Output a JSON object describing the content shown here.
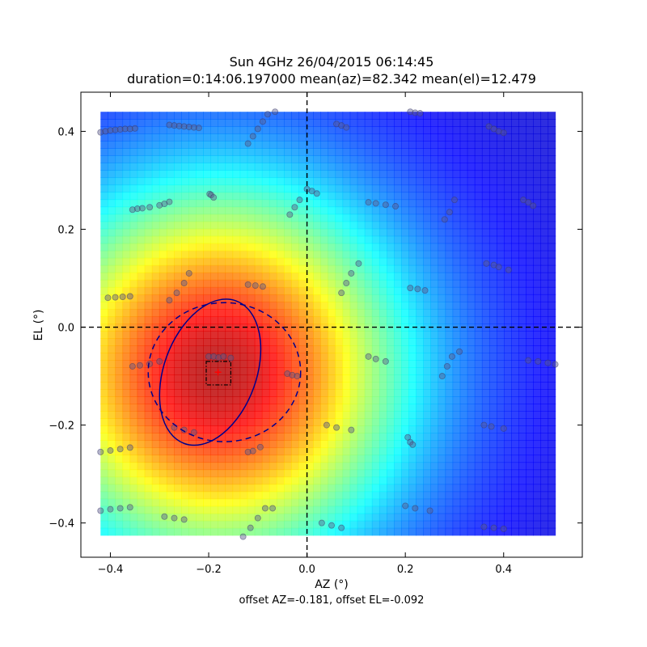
{
  "chart_data": {
    "type": "heatmap",
    "title": "Sun 4GHz 26/04/2015 06:14:45",
    "subtitle": "duration=0:14:06.197000 mean(az)=82.342 mean(el)=12.479",
    "xlabel": "AZ (°)",
    "ylabel": "EL (°)",
    "footer": "offset AZ=-0.181, offset EL=-0.092",
    "xlim": [
      -0.46,
      0.56
    ],
    "ylim": [
      -0.47,
      0.48
    ],
    "heatmap_extent": {
      "x": [
        -0.42,
        0.505
      ],
      "y": [
        -0.425,
        0.44
      ]
    },
    "colormap": "jet",
    "xticks": [
      {
        "value": -0.4,
        "label": "−0.4"
      },
      {
        "value": -0.2,
        "label": "−0.2"
      },
      {
        "value": 0.0,
        "label": "0.0"
      },
      {
        "value": 0.2,
        "label": "0.2"
      },
      {
        "value": 0.4,
        "label": "0.4"
      }
    ],
    "yticks": [
      {
        "value": -0.4,
        "label": "−0.4"
      },
      {
        "value": -0.2,
        "label": "−0.2"
      },
      {
        "value": 0.0,
        "label": "0.0"
      },
      {
        "value": 0.2,
        "label": "0.2"
      },
      {
        "value": 0.4,
        "label": "0.4"
      }
    ],
    "beam_center": {
      "az": -0.181,
      "el": -0.092
    },
    "half_power_ellipse": {
      "center": [
        -0.197,
        -0.092
      ],
      "semi_axes": [
        0.094,
        0.155
      ],
      "rotation_deg": 20
    },
    "beam_ellipse": {
      "center": [
        -0.168,
        -0.092
      ],
      "semi_axes": [
        0.155,
        0.142
      ],
      "rotation_deg": 0
    },
    "center_box": {
      "x": [
        -0.205,
        -0.155
      ],
      "y": [
        -0.118,
        -0.07
      ]
    },
    "crosshair": {
      "x": 0.0,
      "y": 0.0
    },
    "colors": {
      "circle_fill": "#5a5a8c",
      "circle_stroke": "#3a3a6a",
      "contour": "#00008b",
      "marker": "#ff0000"
    },
    "scan_points": [
      {
        "az": -0.42,
        "el": 0.398
      },
      {
        "az": -0.41,
        "el": 0.4
      },
      {
        "az": -0.4,
        "el": 0.402
      },
      {
        "az": -0.39,
        "el": 0.403
      },
      {
        "az": -0.38,
        "el": 0.404
      },
      {
        "az": -0.37,
        "el": 0.405
      },
      {
        "az": -0.36,
        "el": 0.405
      },
      {
        "az": -0.35,
        "el": 0.406
      },
      {
        "az": -0.28,
        "el": 0.413
      },
      {
        "az": -0.27,
        "el": 0.412
      },
      {
        "az": -0.26,
        "el": 0.411
      },
      {
        "az": -0.25,
        "el": 0.41
      },
      {
        "az": -0.24,
        "el": 0.409
      },
      {
        "az": -0.23,
        "el": 0.408
      },
      {
        "az": -0.22,
        "el": 0.407
      },
      {
        "az": -0.12,
        "el": 0.375
      },
      {
        "az": -0.11,
        "el": 0.39
      },
      {
        "az": -0.1,
        "el": 0.405
      },
      {
        "az": -0.09,
        "el": 0.42
      },
      {
        "az": -0.08,
        "el": 0.435
      },
      {
        "az": -0.065,
        "el": 0.44
      },
      {
        "az": 0.06,
        "el": 0.415
      },
      {
        "az": 0.07,
        "el": 0.412
      },
      {
        "az": 0.08,
        "el": 0.408
      },
      {
        "az": 0.21,
        "el": 0.44
      },
      {
        "az": 0.22,
        "el": 0.438
      },
      {
        "az": 0.23,
        "el": 0.437
      },
      {
        "az": 0.37,
        "el": 0.41
      },
      {
        "az": 0.38,
        "el": 0.405
      },
      {
        "az": 0.39,
        "el": 0.4
      },
      {
        "az": 0.4,
        "el": 0.397
      },
      {
        "az": -0.355,
        "el": 0.24
      },
      {
        "az": -0.345,
        "el": 0.242
      },
      {
        "az": -0.335,
        "el": 0.243
      },
      {
        "az": -0.32,
        "el": 0.245
      },
      {
        "az": -0.3,
        "el": 0.249
      },
      {
        "az": -0.29,
        "el": 0.252
      },
      {
        "az": -0.28,
        "el": 0.256
      },
      {
        "az": -0.198,
        "el": 0.272
      },
      {
        "az": -0.195,
        "el": 0.27
      },
      {
        "az": -0.19,
        "el": 0.265
      },
      {
        "az": -0.035,
        "el": 0.23
      },
      {
        "az": -0.025,
        "el": 0.245
      },
      {
        "az": -0.015,
        "el": 0.26
      },
      {
        "az": 0.0,
        "el": 0.282
      },
      {
        "az": 0.01,
        "el": 0.278
      },
      {
        "az": 0.02,
        "el": 0.273
      },
      {
        "az": 0.125,
        "el": 0.255
      },
      {
        "az": 0.14,
        "el": 0.253
      },
      {
        "az": 0.16,
        "el": 0.25
      },
      {
        "az": 0.18,
        "el": 0.247
      },
      {
        "az": 0.28,
        "el": 0.22
      },
      {
        "az": 0.29,
        "el": 0.235
      },
      {
        "az": 0.3,
        "el": 0.26
      },
      {
        "az": 0.44,
        "el": 0.26
      },
      {
        "az": 0.45,
        "el": 0.255
      },
      {
        "az": 0.46,
        "el": 0.248
      },
      {
        "az": -0.405,
        "el": 0.06
      },
      {
        "az": -0.39,
        "el": 0.061
      },
      {
        "az": -0.375,
        "el": 0.062
      },
      {
        "az": -0.36,
        "el": 0.063
      },
      {
        "az": -0.28,
        "el": 0.055
      },
      {
        "az": -0.265,
        "el": 0.07
      },
      {
        "az": -0.25,
        "el": 0.09
      },
      {
        "az": -0.24,
        "el": 0.11
      },
      {
        "az": -0.12,
        "el": 0.087
      },
      {
        "az": -0.105,
        "el": 0.085
      },
      {
        "az": -0.09,
        "el": 0.083
      },
      {
        "az": 0.07,
        "el": 0.07
      },
      {
        "az": 0.08,
        "el": 0.09
      },
      {
        "az": 0.09,
        "el": 0.11
      },
      {
        "az": 0.105,
        "el": 0.13
      },
      {
        "az": 0.21,
        "el": 0.08
      },
      {
        "az": 0.225,
        "el": 0.078
      },
      {
        "az": 0.24,
        "el": 0.075
      },
      {
        "az": 0.365,
        "el": 0.13
      },
      {
        "az": 0.38,
        "el": 0.127
      },
      {
        "az": 0.39,
        "el": 0.123
      },
      {
        "az": 0.41,
        "el": 0.117
      },
      {
        "az": -0.355,
        "el": -0.08
      },
      {
        "az": -0.34,
        "el": -0.078
      },
      {
        "az": -0.32,
        "el": -0.075
      },
      {
        "az": -0.3,
        "el": -0.07
      },
      {
        "az": -0.2,
        "el": -0.06
      },
      {
        "az": -0.19,
        "el": -0.06
      },
      {
        "az": -0.18,
        "el": -0.062
      },
      {
        "az": -0.17,
        "el": -0.06
      },
      {
        "az": -0.155,
        "el": -0.063
      },
      {
        "az": -0.04,
        "el": -0.095
      },
      {
        "az": -0.03,
        "el": -0.098
      },
      {
        "az": -0.02,
        "el": -0.1
      },
      {
        "az": 0.125,
        "el": -0.06
      },
      {
        "az": 0.14,
        "el": -0.065
      },
      {
        "az": 0.16,
        "el": -0.07
      },
      {
        "az": 0.275,
        "el": -0.1
      },
      {
        "az": 0.285,
        "el": -0.08
      },
      {
        "az": 0.295,
        "el": -0.06
      },
      {
        "az": 0.31,
        "el": -0.05
      },
      {
        "az": 0.45,
        "el": -0.068
      },
      {
        "az": 0.47,
        "el": -0.07
      },
      {
        "az": 0.49,
        "el": -0.073
      },
      {
        "az": 0.505,
        "el": -0.076
      },
      {
        "az": -0.42,
        "el": -0.255
      },
      {
        "az": -0.4,
        "el": -0.252
      },
      {
        "az": -0.38,
        "el": -0.249
      },
      {
        "az": -0.36,
        "el": -0.246
      },
      {
        "az": -0.27,
        "el": -0.205
      },
      {
        "az": -0.25,
        "el": -0.21
      },
      {
        "az": -0.23,
        "el": -0.215
      },
      {
        "az": -0.12,
        "el": -0.255
      },
      {
        "az": -0.11,
        "el": -0.253
      },
      {
        "az": -0.095,
        "el": -0.245
      },
      {
        "az": 0.04,
        "el": -0.2
      },
      {
        "az": 0.06,
        "el": -0.205
      },
      {
        "az": 0.09,
        "el": -0.21
      },
      {
        "az": 0.205,
        "el": -0.225
      },
      {
        "az": 0.21,
        "el": -0.235
      },
      {
        "az": 0.215,
        "el": -0.24
      },
      {
        "az": 0.36,
        "el": -0.2
      },
      {
        "az": 0.375,
        "el": -0.203
      },
      {
        "az": 0.4,
        "el": -0.207
      },
      {
        "az": -0.42,
        "el": -0.375
      },
      {
        "az": -0.4,
        "el": -0.372
      },
      {
        "az": -0.38,
        "el": -0.37
      },
      {
        "az": -0.36,
        "el": -0.368
      },
      {
        "az": -0.29,
        "el": -0.387
      },
      {
        "az": -0.27,
        "el": -0.39
      },
      {
        "az": -0.25,
        "el": -0.393
      },
      {
        "az": -0.13,
        "el": -0.428
      },
      {
        "az": -0.115,
        "el": -0.41
      },
      {
        "az": -0.1,
        "el": -0.39
      },
      {
        "az": -0.085,
        "el": -0.37
      },
      {
        "az": -0.07,
        "el": -0.37
      },
      {
        "az": 0.03,
        "el": -0.4
      },
      {
        "az": 0.05,
        "el": -0.405
      },
      {
        "az": 0.07,
        "el": -0.41
      },
      {
        "az": 0.2,
        "el": -0.365
      },
      {
        "az": 0.22,
        "el": -0.37
      },
      {
        "az": 0.25,
        "el": -0.375
      },
      {
        "az": 0.36,
        "el": -0.408
      },
      {
        "az": 0.38,
        "el": -0.41
      },
      {
        "az": 0.4,
        "el": -0.412
      }
    ]
  }
}
